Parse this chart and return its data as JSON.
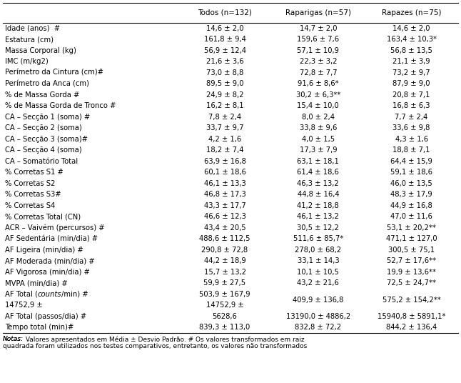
{
  "headers": [
    "",
    "Todos (n=132)",
    "Raparigas (n=57)",
    "Rapazes (n=75)"
  ],
  "rows": [
    {
      "label": "Idade (anos)  #",
      "italic_word": null,
      "label2": null,
      "todos": "14,6 ± 2,0",
      "rap": "14,7 ± 2,0",
      "rap2": null,
      "rpz": "14,6 ± 2,0",
      "rpz2": null
    },
    {
      "label": "Estatura (cm)",
      "italic_word": null,
      "label2": null,
      "todos": "161,8 ± 9,4",
      "rap": "159,6 ± 7,6",
      "rap2": null,
      "rpz": "163,4 ± 10,3*",
      "rpz2": null
    },
    {
      "label": "Massa Corporal (kg)",
      "italic_word": null,
      "label2": null,
      "todos": "56,9 ± 12,4",
      "rap": "57,1 ± 10,9",
      "rap2": null,
      "rpz": "56,8 ± 13,5",
      "rpz2": null
    },
    {
      "label": "IMC (m/kg2)",
      "italic_word": null,
      "label2": null,
      "todos": "21,6 ± 3,6",
      "rap": "22,3 ± 3,2",
      "rap2": null,
      "rpz": "21,1 ± 3,9",
      "rpz2": null
    },
    {
      "label": "Perímetro da Cintura (cm)#",
      "italic_word": null,
      "label2": null,
      "todos": "73,0 ± 8,8",
      "rap": "72,8 ± 7,7",
      "rap2": null,
      "rpz": "73,2 ± 9,7",
      "rpz2": null
    },
    {
      "label": "Perímetro da Anca (cm)",
      "italic_word": null,
      "label2": null,
      "todos": "89,5 ± 9,0",
      "rap": "91,6 ± 8,6*",
      "rap2": null,
      "rpz": "87,9 ± 9,0",
      "rpz2": null
    },
    {
      "label": "% de Massa Gorda #",
      "italic_word": null,
      "label2": null,
      "todos": "24,9 ± 8,2",
      "rap": "30,2 ± 6,3**",
      "rap2": null,
      "rpz": "20,8 ± 7,1",
      "rpz2": null
    },
    {
      "label": "% de Massa Gorda de Tronco #",
      "italic_word": null,
      "label2": null,
      "todos": "16,2 ± 8,1",
      "rap": "15,4 ± 10,0",
      "rap2": null,
      "rpz": "16,8 ± 6,3",
      "rpz2": null
    },
    {
      "label": "CA – Secção 1 (soma) #",
      "italic_word": null,
      "label2": null,
      "todos": "7,8 ± 2,4",
      "rap": "8,0 ± 2,4",
      "rap2": null,
      "rpz": "7,7 ± 2,4",
      "rpz2": null
    },
    {
      "label": "CA – Secção 2 (soma)",
      "italic_word": null,
      "label2": null,
      "todos": "33,7 ± 9,7",
      "rap": "33,8 ± 9,6",
      "rap2": null,
      "rpz": "33,6 ± 9,8",
      "rpz2": null
    },
    {
      "label": "CA – Secção 3 (soma)#",
      "italic_word": null,
      "label2": null,
      "todos": "4,2 ± 1,6",
      "rap": "4,0 ± 1,5",
      "rap2": null,
      "rpz": "4,3 ± 1,6",
      "rpz2": null
    },
    {
      "label": "CA – Secção 4 (soma)",
      "italic_word": null,
      "label2": null,
      "todos": "18,2 ± 7,4",
      "rap": "17,3 ± 7,9",
      "rap2": null,
      "rpz": "18,8 ± 7,1",
      "rpz2": null
    },
    {
      "label": "CA – Somatório Total",
      "italic_word": null,
      "label2": null,
      "todos": "63,9 ± 16,8",
      "rap": "63,1 ± 18,1",
      "rap2": null,
      "rpz": "64,4 ± 15,9",
      "rpz2": null
    },
    {
      "label": "% Corretas S1 #",
      "italic_word": null,
      "label2": null,
      "todos": "60,1 ± 18,6",
      "rap": "61,4 ± 18,6",
      "rap2": null,
      "rpz": "59,1 ± 18,6",
      "rpz2": null
    },
    {
      "label": "% Corretas S2",
      "italic_word": null,
      "label2": null,
      "todos": "46,1 ± 13,3",
      "rap": "46,3 ± 13,2",
      "rap2": null,
      "rpz": "46,0 ± 13,5",
      "rpz2": null
    },
    {
      "label": "% Corretas S3#",
      "italic_word": null,
      "label2": null,
      "todos": "46,8 ± 17,3",
      "rap": "44,8 ± 16,4",
      "rap2": null,
      "rpz": "48,3 ± 17,9",
      "rpz2": null
    },
    {
      "label": "% Corretas S4",
      "italic_word": null,
      "label2": null,
      "todos": "43,3 ± 17,7",
      "rap": "41,2 ± 18,8",
      "rap2": null,
      "rpz": "44,9 ± 16,8",
      "rpz2": null
    },
    {
      "label": "% Corretas Total (CN)",
      "italic_word": null,
      "label2": null,
      "todos": "46,6 ± 12,3",
      "rap": "46,1 ± 13,2",
      "rap2": null,
      "rpz": "47,0 ± 11,6",
      "rpz2": null
    },
    {
      "label": "ACR – Vaivém (percursos) #",
      "italic_word": null,
      "label2": null,
      "todos": "43,4 ± 20,5",
      "rap": "30,5 ± 12,2",
      "rap2": null,
      "rpz": "53,1 ± 20,2**",
      "rpz2": null
    },
    {
      "label": "AF Sedentária (min/dia) #",
      "italic_word": null,
      "label2": null,
      "todos": "488,6 ± 112,5",
      "rap": "511,6 ± 85,7*",
      "rap2": null,
      "rpz": "471,1 ± 127,0",
      "rpz2": null
    },
    {
      "label": "AF Ligeira (min/dia) #",
      "italic_word": null,
      "label2": null,
      "todos": "290,8 ± 72,8",
      "rap": "278,0 ± 68,2",
      "rap2": null,
      "rpz": "300,5 ± 75,1",
      "rpz2": null
    },
    {
      "label": "AF Moderada (min/dia) #",
      "italic_word": null,
      "label2": null,
      "todos": "44,2 ± 18,9",
      "rap": "33,1 ± 14,3",
      "rap2": null,
      "rpz": "52,7 ± 17,6**",
      "rpz2": null
    },
    {
      "label": "AF Vigorosa (min/dia) #",
      "italic_word": null,
      "label2": null,
      "todos": "15,7 ± 13,2",
      "rap": "10,1 ± 10,5",
      "rap2": null,
      "rpz": "19,9 ± 13,6**",
      "rpz2": null
    },
    {
      "label": "MVPA (min/dia) #",
      "italic_word": null,
      "label2": null,
      "todos": "59,9 ± 27,5",
      "rap": "43,2 ± 21,6",
      "rap2": null,
      "rpz": "72,5 ± 24,7**",
      "rpz2": null
    },
    {
      "label": "AF Total (counts/min) #",
      "italic_word": "counts",
      "label2": null,
      "todos": "503,9 ± 167,9",
      "rap": "409,9 ± 136,8",
      "rap2": null,
      "rpz": "575,2 ± 154,2**",
      "rpz2": null,
      "double_height": true,
      "todos2": "14752,9 ±",
      "rap2_val": "",
      "rpz2_val": ""
    },
    {
      "label": "AF Total (passos/dia) #",
      "italic_word": null,
      "label2": null,
      "todos": "5628,6",
      "rap": "13190,0 ± 4886,2",
      "rap2": null,
      "rpz": "15940,8 ± 5891,1*",
      "rpz2": null
    },
    {
      "label": "Tempo total (min)#",
      "italic_word": null,
      "label2": null,
      "todos": "839,3 ± 113,0",
      "rap": "832,8 ± 72,2",
      "rap2": null,
      "rpz": "844,2 ± 136,4",
      "rpz2": null
    }
  ],
  "footnote_italic": "Notas:",
  "footnote_normal": " Valores apresentados em Média ± Desvio Padrão.",
  "footnote_hash": " # Os valores transformados em raiz",
  "footnote_line2": "quadrada foram utilizados nos testes comparativos, entretanto, os valores não transformados",
  "bg_color": "#ffffff",
  "text_color": "#000000"
}
